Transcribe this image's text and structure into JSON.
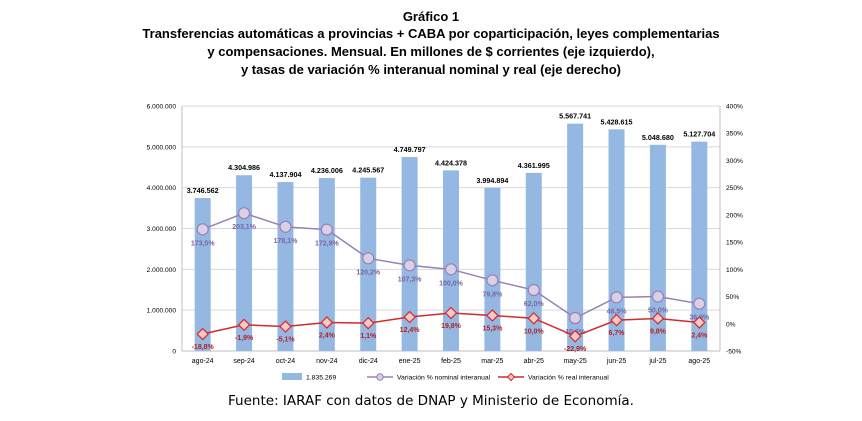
{
  "figure_label": "Gráfico 1",
  "title_lines": [
    "Transferencias automáticas a provincias + CABA por coparticipación, leyes complementarias",
    "y compensaciones. Mensual. En millones de $ corrientes (eje izquierdo),",
    "y tasas de variación % interanual nominal y real (eje derecho)"
  ],
  "source": "Fuente: IARAF con datos de DNAP y Ministerio de Economía.",
  "colors": {
    "bar": "#95b8e3",
    "nominal": "#9880b4",
    "real": "#d42a2a",
    "grid": "#d9d9d9"
  },
  "chart_data": {
    "type": "bar",
    "categories": [
      "ago-24",
      "sep-24",
      "oct-24",
      "nov-24",
      "dic-24",
      "ene-25",
      "feb-25",
      "mar-25",
      "abr-25",
      "may-25",
      "jun-25",
      "jul-25",
      "ago-25"
    ],
    "bar_labels": [
      "3.746.562",
      "4.304.986",
      "4.137.904",
      "4.236.006",
      "4.245.567",
      "4.749.797",
      "4.424.378",
      "3.994.894",
      "4.361.995",
      "5.567.741",
      "5.428.615",
      "5.048.680",
      "5.127.704"
    ],
    "y_left": {
      "ylim": [
        0,
        6000000
      ],
      "ticks": [
        0,
        1000000,
        2000000,
        3000000,
        4000000,
        5000000,
        6000000
      ],
      "tick_labels": [
        "0",
        "1.000.000",
        "2.000.000",
        "3.000.000",
        "4.000.000",
        "5.000.000",
        "6.000.000"
      ]
    },
    "y_right": {
      "ylim": [
        -50,
        400
      ],
      "ticks": [
        -50,
        0,
        50,
        100,
        150,
        200,
        250,
        300,
        350,
        400
      ],
      "tick_labels": [
        "-50%",
        "0%",
        "50%",
        "100%",
        "150%",
        "200%",
        "250%",
        "300%",
        "350%",
        "400%"
      ]
    },
    "grid": true,
    "legend_position": "bottom",
    "series": [
      {
        "name": "1.835.269",
        "type": "bar",
        "axis": "left",
        "values": [
          3746562,
          4304986,
          4137904,
          4236006,
          4245567,
          4749797,
          4424378,
          3994894,
          4361995,
          5567741,
          5428615,
          5048680,
          5127704
        ]
      },
      {
        "name": "Variación % nominal interanual",
        "type": "line",
        "axis": "right",
        "values": [
          173.5,
          203.1,
          178.1,
          172.9,
          120.2,
          107.3,
          100.0,
          79.8,
          62.0,
          10.6,
          48.5,
          50.0,
          36.9
        ],
        "labels": [
          "173,5%",
          "203,1%",
          "178,1%",
          "172,9%",
          "120,2%",
          "107,3%",
          "100,0%",
          "79,8%",
          "62,0%",
          "10,6%",
          "48,5%",
          "50,0%",
          "36,9%"
        ]
      },
      {
        "name": "Variación % real interanual",
        "type": "line",
        "axis": "right",
        "values": [
          -18.8,
          -1.9,
          -5.1,
          2.4,
          1.1,
          12.4,
          19.8,
          15.3,
          10.0,
          -22.9,
          6.7,
          9.8,
          2.4
        ],
        "labels": [
          "-18,8%",
          "-1,9%",
          "-5,1%",
          "2,4%",
          "1,1%",
          "12,4%",
          "19,8%",
          "15,3%",
          "10,0%",
          "-22,9%",
          "6,7%",
          "9,8%",
          "2,4%"
        ]
      }
    ]
  }
}
